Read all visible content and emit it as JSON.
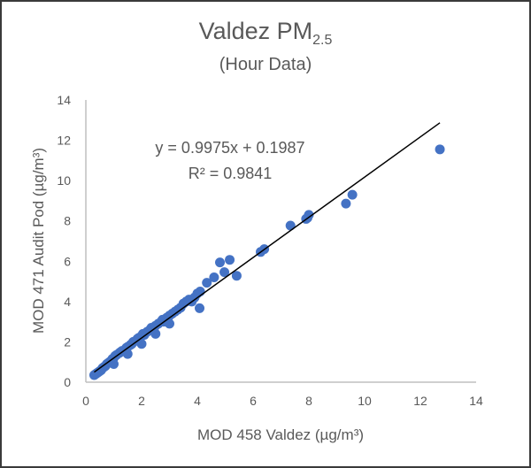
{
  "chart_data": {
    "type": "scatter",
    "title": "Valdez PM",
    "title_subscript": "2.5",
    "subtitle": "(Hour Data)",
    "xlabel": "MOD 458 Valdez (µg/m³)",
    "ylabel": "MOD 471 Audit Pod (µg/m³)",
    "xlim": [
      0,
      14
    ],
    "ylim": [
      0,
      14
    ],
    "xticks": [
      "0",
      "2",
      "4",
      "6",
      "8",
      "10",
      "12",
      "14"
    ],
    "yticks": [
      "0",
      "2",
      "4",
      "6",
      "8",
      "10",
      "12",
      "14"
    ],
    "grid": false,
    "marker_color": "#4472c4",
    "trendline": {
      "slope": 0.9975,
      "intercept": 0.1987,
      "x_range": [
        0.3,
        12.7
      ],
      "color": "#000000"
    },
    "equation_label": "y = 0.9975x + 0.1987",
    "r2_label": "R² = 0.9841",
    "points": [
      [
        0.3,
        0.35
      ],
      [
        0.35,
        0.4
      ],
      [
        0.4,
        0.45
      ],
      [
        0.45,
        0.5
      ],
      [
        0.5,
        0.55
      ],
      [
        0.55,
        0.6
      ],
      [
        0.6,
        0.7
      ],
      [
        0.65,
        0.75
      ],
      [
        0.7,
        0.8
      ],
      [
        0.75,
        0.9
      ],
      [
        0.8,
        0.95
      ],
      [
        0.85,
        1.0
      ],
      [
        0.9,
        1.05
      ],
      [
        0.95,
        1.15
      ],
      [
        1.0,
        1.2
      ],
      [
        1.05,
        1.3
      ],
      [
        1.1,
        1.35
      ],
      [
        1.2,
        1.45
      ],
      [
        1.25,
        1.5
      ],
      [
        1.3,
        1.55
      ],
      [
        1.4,
        1.6
      ],
      [
        1.45,
        1.7
      ],
      [
        1.5,
        1.75
      ],
      [
        1.6,
        1.85
      ],
      [
        1.65,
        1.9
      ],
      [
        1.7,
        2.0
      ],
      [
        1.8,
        2.05
      ],
      [
        1.85,
        2.15
      ],
      [
        1.9,
        2.2
      ],
      [
        2.0,
        2.3
      ],
      [
        2.05,
        2.4
      ],
      [
        2.1,
        2.35
      ],
      [
        2.2,
        2.5
      ],
      [
        2.3,
        2.6
      ],
      [
        2.35,
        2.7
      ],
      [
        2.4,
        2.65
      ],
      [
        2.5,
        2.8
      ],
      [
        2.6,
        2.9
      ],
      [
        2.7,
        3.0
      ],
      [
        2.75,
        3.1
      ],
      [
        2.8,
        3.0
      ],
      [
        2.9,
        3.2
      ],
      [
        3.0,
        3.3
      ],
      [
        3.1,
        3.4
      ],
      [
        3.2,
        3.5
      ],
      [
        3.3,
        3.6
      ],
      [
        3.4,
        3.7
      ],
      [
        3.5,
        3.9
      ],
      [
        3.6,
        4.0
      ],
      [
        3.7,
        4.1
      ],
      [
        3.8,
        4.0
      ],
      [
        3.9,
        4.2
      ],
      [
        4.0,
        4.4
      ],
      [
        4.1,
        4.5
      ],
      [
        4.08,
        3.67
      ],
      [
        1.0,
        0.9
      ],
      [
        1.5,
        1.4
      ],
      [
        2.0,
        1.9
      ],
      [
        2.5,
        2.4
      ],
      [
        3.0,
        2.9
      ],
      [
        4.34,
        4.93
      ],
      [
        4.6,
        5.2
      ],
      [
        4.81,
        5.94
      ],
      [
        4.97,
        5.46
      ],
      [
        5.16,
        6.07
      ],
      [
        5.41,
        5.28
      ],
      [
        6.27,
        6.46
      ],
      [
        6.4,
        6.6
      ],
      [
        7.34,
        7.77
      ],
      [
        7.9,
        8.1
      ],
      [
        7.95,
        8.15
      ],
      [
        8.0,
        8.3
      ],
      [
        9.33,
        8.86
      ],
      [
        9.56,
        9.3
      ],
      [
        12.7,
        11.55
      ]
    ]
  }
}
